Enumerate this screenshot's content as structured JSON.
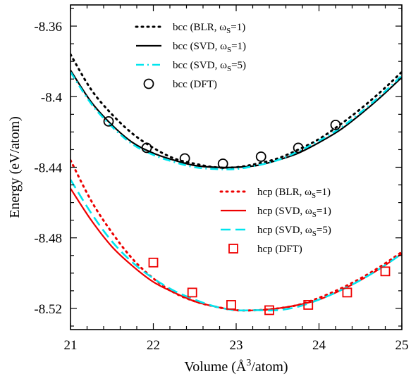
{
  "chart_data": {
    "type": "line",
    "title": "",
    "xlabel": {
      "pre": "Volume (Å",
      "sup": "3",
      "post": "/atom)"
    },
    "ylabel": "Energy (eV/atom)",
    "xlim": [
      21,
      25
    ],
    "ylim": [
      -8.532,
      -8.348
    ],
    "xticks": [
      21,
      22,
      23,
      24,
      25
    ],
    "xtick_labels": [
      "21",
      "22",
      "23",
      "24",
      "25"
    ],
    "yticks": [
      -8.52,
      -8.48,
      -8.44,
      -8.4,
      -8.36
    ],
    "ytick_labels": [
      "-8.52",
      "-8.48",
      "-8.44",
      "-8.4",
      "-8.36"
    ],
    "grid": false,
    "legend_placement": "top-center (bcc), center-right (hcp)",
    "series": [
      {
        "group": "bcc",
        "legend": {
          "pre": "bcc (BLR, ω",
          "sub": "S",
          "post": "=1)"
        },
        "style": "dotted",
        "color": "#000000",
        "x": [
          21.0,
          21.25,
          21.5,
          21.75,
          22.0,
          22.25,
          22.5,
          22.75,
          23.0,
          23.25,
          23.5,
          23.75,
          24.0,
          24.25,
          24.5,
          24.75,
          25.0
        ],
        "y": [
          -8.376,
          -8.396,
          -8.41,
          -8.421,
          -8.429,
          -8.435,
          -8.438,
          -8.44,
          -8.44,
          -8.438,
          -8.435,
          -8.43,
          -8.424,
          -8.416,
          -8.407,
          -8.397,
          -8.386
        ]
      },
      {
        "group": "bcc",
        "legend": {
          "pre": "bcc (SVD, ω",
          "sub": "S",
          "post": "=1)"
        },
        "style": "solid",
        "color": "#000000",
        "x": [
          21.0,
          21.25,
          21.5,
          21.75,
          22.0,
          22.25,
          22.5,
          22.75,
          23.0,
          23.25,
          23.5,
          23.75,
          24.0,
          24.25,
          24.5,
          24.75,
          25.0
        ],
        "y": [
          -8.385,
          -8.403,
          -8.416,
          -8.426,
          -8.432,
          -8.436,
          -8.439,
          -8.44,
          -8.44,
          -8.439,
          -8.436,
          -8.432,
          -8.426,
          -8.419,
          -8.41,
          -8.4,
          -8.389
        ]
      },
      {
        "group": "bcc",
        "legend": {
          "pre": "bcc (SVD, ω",
          "sub": "S",
          "post": "=5)"
        },
        "style": "dashdot",
        "color": "#00e5ee",
        "x": [
          21.0,
          21.25,
          21.5,
          21.75,
          22.0,
          22.25,
          22.5,
          22.75,
          23.0,
          23.25,
          23.5,
          23.75,
          24.0,
          24.25,
          24.5,
          24.75,
          25.0
        ],
        "y": [
          -8.386,
          -8.404,
          -8.417,
          -8.427,
          -8.433,
          -8.437,
          -8.44,
          -8.441,
          -8.441,
          -8.439,
          -8.436,
          -8.431,
          -8.425,
          -8.418,
          -8.409,
          -8.399,
          -8.388
        ]
      },
      {
        "group": "bcc",
        "legend": {
          "pre": "bcc (DFT)",
          "sub": "",
          "post": ""
        },
        "style": "marker-circle",
        "color": "#000000",
        "x": [
          21.46,
          21.92,
          22.38,
          22.84,
          23.3,
          23.75,
          24.2
        ],
        "y": [
          -8.414,
          -8.429,
          -8.435,
          -8.438,
          -8.434,
          -8.429,
          -8.416
        ]
      },
      {
        "group": "hcp",
        "legend": {
          "pre": "hcp (BLR, ω",
          "sub": "S",
          "post": "=1)"
        },
        "style": "dotted",
        "color": "#ee0000",
        "x": [
          21.0,
          21.25,
          21.5,
          21.75,
          22.0,
          22.25,
          22.5,
          22.75,
          23.0,
          23.25,
          23.5,
          23.75,
          24.0,
          24.25,
          24.5,
          24.75,
          25.0
        ],
        "y": [
          -8.436,
          -8.459,
          -8.477,
          -8.492,
          -8.503,
          -8.511,
          -8.516,
          -8.519,
          -8.521,
          -8.521,
          -8.52,
          -8.518,
          -8.514,
          -8.509,
          -8.503,
          -8.496,
          -8.488
        ]
      },
      {
        "group": "hcp",
        "legend": {
          "pre": "hcp (SVD, ω",
          "sub": "S",
          "post": "=1)"
        },
        "style": "solid",
        "color": "#ee0000",
        "x": [
          21.0,
          21.25,
          21.5,
          21.75,
          22.0,
          22.25,
          22.5,
          22.75,
          23.0,
          23.25,
          23.5,
          23.75,
          24.0,
          24.25,
          24.5,
          24.75,
          25.0
        ],
        "y": [
          -8.452,
          -8.47,
          -8.485,
          -8.496,
          -8.505,
          -8.511,
          -8.516,
          -8.519,
          -8.521,
          -8.521,
          -8.52,
          -8.518,
          -8.515,
          -8.51,
          -8.504,
          -8.497,
          -8.489
        ]
      },
      {
        "group": "hcp",
        "legend": {
          "pre": "hcp (SVD, ω",
          "sub": "S",
          "post": "=5)"
        },
        "style": "dashed",
        "color": "#00e5ee",
        "x": [
          21.0,
          21.25,
          21.5,
          21.75,
          22.0,
          22.25,
          22.5,
          22.75,
          23.0,
          23.25,
          23.5,
          23.75,
          24.0,
          24.25,
          24.5,
          24.75,
          25.0
        ],
        "y": [
          -8.447,
          -8.466,
          -8.482,
          -8.494,
          -8.503,
          -8.51,
          -8.515,
          -8.519,
          -8.521,
          -8.521,
          -8.521,
          -8.519,
          -8.515,
          -8.51,
          -8.504,
          -8.497,
          -8.489
        ]
      },
      {
        "group": "hcp",
        "legend": {
          "pre": "hcp (DFT)",
          "sub": "",
          "post": ""
        },
        "style": "marker-square",
        "color": "#ee0000",
        "x": [
          22.0,
          22.47,
          22.94,
          23.4,
          23.87,
          24.34,
          24.8
        ],
        "y": [
          -8.494,
          -8.511,
          -8.518,
          -8.521,
          -8.518,
          -8.511,
          -8.499
        ]
      }
    ]
  }
}
